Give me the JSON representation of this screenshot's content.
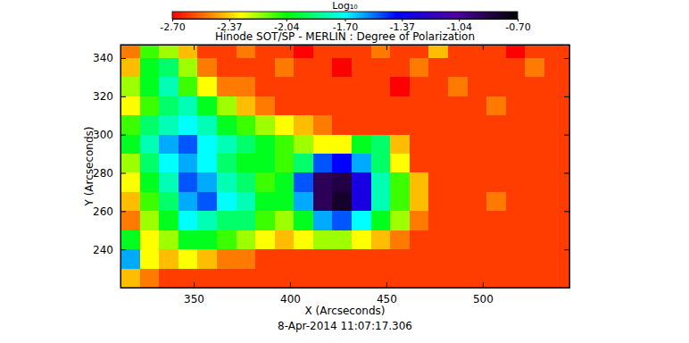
{
  "chart_data": {
    "type": "heatmap",
    "title": "Hinode SOT/SP - MERLIN : Degree of Polarization",
    "xlabel": "X (Arcseconds)",
    "ylabel": "Y (Arcseconds)",
    "annotation": "8-Apr-2014 11:07:17.306",
    "colorbar_label": "Log₁₀",
    "xlim": [
      312,
      545
    ],
    "ylim": [
      220,
      347
    ],
    "xticks": [
      350,
      400,
      450,
      500
    ],
    "yticks": [
      240,
      260,
      280,
      300,
      320,
      340
    ],
    "zlim": [
      -2.7,
      -0.7
    ],
    "zticks": [
      {
        "value": -2.7,
        "label": "-2.70"
      },
      {
        "value": -2.37,
        "label": "-2.37"
      },
      {
        "value": -2.04,
        "label": "-2.04"
      },
      {
        "value": -1.7,
        "label": "-1.70"
      },
      {
        "value": -1.37,
        "label": "-1.37"
      },
      {
        "value": -1.04,
        "label": "-1.04"
      },
      {
        "value": -0.7,
        "label": "-0.70"
      }
    ],
    "x": [
      317,
      327,
      337,
      347,
      357,
      367,
      377,
      387,
      397,
      407,
      417,
      427,
      437,
      447,
      457,
      467,
      477,
      487,
      497,
      507,
      517,
      527,
      537,
      547
    ],
    "y": [
      345,
      335,
      325,
      315,
      305,
      295,
      285,
      275,
      265,
      255,
      245,
      235,
      225
    ],
    "z": [
      [
        -2.5,
        -2.1,
        -2.2,
        -2.4,
        -2.6,
        -2.6,
        -2.5,
        -2.6,
        -2.6,
        -2.7,
        -2.6,
        -2.6,
        -2.6,
        -2.5,
        -2.6,
        -2.6,
        -2.4,
        -2.6,
        -2.6,
        -2.6,
        -2.7,
        -2.6,
        -2.6,
        -2.6
      ],
      [
        -2.4,
        -2.0,
        -1.9,
        -2.2,
        -2.5,
        -2.6,
        -2.6,
        -2.6,
        -2.5,
        -2.6,
        -2.6,
        -2.7,
        -2.6,
        -2.6,
        -2.6,
        -2.5,
        -2.6,
        -2.6,
        -2.6,
        -2.6,
        -2.6,
        -2.5,
        -2.6,
        -2.6
      ],
      [
        -2.2,
        -2.0,
        -1.8,
        -2.1,
        -2.3,
        -2.5,
        -2.5,
        -2.6,
        -2.6,
        -2.6,
        -2.6,
        -2.6,
        -2.6,
        -2.6,
        -2.7,
        -2.6,
        -2.6,
        -2.5,
        -2.6,
        -2.6,
        -2.6,
        -2.6,
        -2.6,
        -2.6
      ],
      [
        -2.3,
        -2.1,
        -1.9,
        -1.8,
        -2.0,
        -2.2,
        -2.4,
        -2.5,
        -2.6,
        -2.6,
        -2.6,
        -2.6,
        -2.6,
        -2.6,
        -2.6,
        -2.6,
        -2.6,
        -2.6,
        -2.6,
        -2.5,
        -2.6,
        -2.6,
        -2.6,
        -2.6
      ],
      [
        -2.1,
        -1.9,
        -1.8,
        -1.7,
        -1.8,
        -2.0,
        -2.1,
        -2.2,
        -2.3,
        -2.4,
        -2.5,
        -2.6,
        -2.6,
        -2.6,
        -2.6,
        -2.6,
        -2.6,
        -2.6,
        -2.6,
        -2.6,
        -2.6,
        -2.6,
        -2.6,
        -2.6
      ],
      [
        -2.0,
        -1.8,
        -1.6,
        -1.5,
        -1.7,
        -1.8,
        -1.9,
        -2.0,
        -2.1,
        -2.2,
        -2.3,
        -2.3,
        -2.0,
        -1.9,
        -2.4,
        -2.6,
        -2.6,
        -2.6,
        -2.6,
        -2.6,
        -2.6,
        -2.6,
        -2.6,
        -2.6
      ],
      [
        -2.2,
        -1.9,
        -1.7,
        -1.6,
        -1.7,
        -1.9,
        -2.0,
        -2.0,
        -2.1,
        -1.9,
        -1.5,
        -1.4,
        -1.6,
        -1.9,
        -2.3,
        -2.6,
        -2.6,
        -2.6,
        -2.6,
        -2.6,
        -2.6,
        -2.6,
        -2.6,
        -2.6
      ],
      [
        -2.3,
        -2.0,
        -1.8,
        -1.5,
        -1.6,
        -1.8,
        -1.9,
        -2.1,
        -2.0,
        -1.5,
        -0.9,
        -0.85,
        -1.3,
        -1.8,
        -2.1,
        -2.4,
        -2.6,
        -2.6,
        -2.6,
        -2.6,
        -2.6,
        -2.6,
        -2.6,
        -2.6
      ],
      [
        -2.4,
        -2.1,
        -1.9,
        -1.6,
        -1.5,
        -1.7,
        -1.8,
        -2.0,
        -2.0,
        -1.6,
        -0.9,
        -0.8,
        -1.3,
        -1.8,
        -2.1,
        -2.4,
        -2.6,
        -2.6,
        -2.6,
        -2.5,
        -2.6,
        -2.6,
        -2.6,
        -2.6
      ],
      [
        -2.5,
        -2.2,
        -2.0,
        -1.7,
        -1.8,
        -1.9,
        -1.9,
        -2.1,
        -2.2,
        -2.0,
        -1.6,
        -1.5,
        -1.7,
        -2.0,
        -2.2,
        -2.5,
        -2.6,
        -2.6,
        -2.6,
        -2.6,
        -2.6,
        -2.6,
        -2.6,
        -2.6
      ],
      [
        -2.0,
        -2.3,
        -2.2,
        -2.0,
        -2.0,
        -2.1,
        -2.2,
        -2.3,
        -2.4,
        -2.3,
        -2.2,
        -2.2,
        -2.3,
        -2.4,
        -2.5,
        -2.6,
        -2.6,
        -2.6,
        -2.6,
        -2.6,
        -2.6,
        -2.6,
        -2.6,
        -2.6
      ],
      [
        -1.6,
        -2.3,
        -2.4,
        -2.3,
        -2.4,
        -2.5,
        -2.5,
        -2.6,
        -2.6,
        -2.6,
        -2.6,
        -2.6,
        -2.6,
        -2.6,
        -2.6,
        -2.6,
        -2.6,
        -2.6,
        -2.6,
        -2.6,
        -2.6,
        -2.6,
        -2.6,
        -2.6
      ],
      [
        -2.4,
        -2.5,
        -2.6,
        -2.6,
        -2.6,
        -2.6,
        -2.6,
        -2.6,
        -2.6,
        -2.6,
        -2.6,
        -2.6,
        -2.6,
        -2.6,
        -2.6,
        -2.6,
        -2.6,
        -2.6,
        -2.6,
        -2.6,
        -2.6,
        -2.6,
        -2.6,
        -2.6
      ]
    ]
  }
}
